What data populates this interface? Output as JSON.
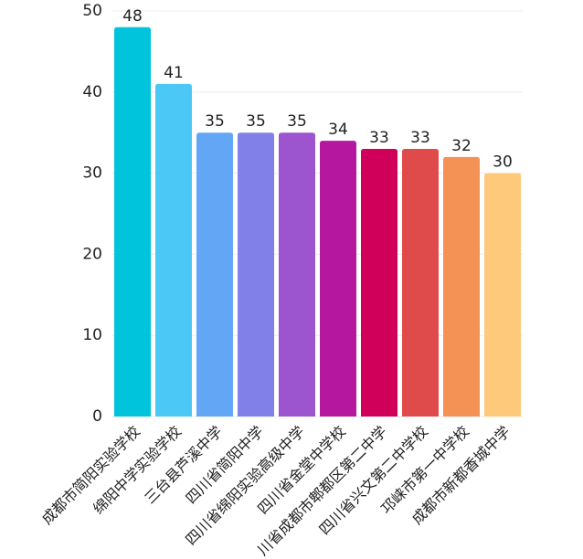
{
  "chart_data": {
    "type": "bar",
    "categories": [
      "成都市简阳实验学校",
      "绵阳中学实验学校",
      "三台县芦溪中学",
      "四川省简阳中学",
      "四川省绵阳实验高级中学",
      "四川省金堂中学校",
      "川省成都市郫都区第二中学",
      "四川省兴文第二中学校",
      "邛崃市第一中学校",
      "成都市新都香城中学"
    ],
    "values": [
      48,
      41,
      35,
      35,
      35,
      34,
      33,
      33,
      32,
      30
    ],
    "colors": [
      "#00c4dc",
      "#4cc8f7",
      "#62a6f5",
      "#8180e9",
      "#9c55cf",
      "#b5179e",
      "#d0005a",
      "#df4b4b",
      "#f49154",
      "#fec97b"
    ],
    "ylim": [
      0,
      50
    ],
    "yticks": [
      0,
      10,
      20,
      30,
      40,
      50
    ],
    "grid": true
  }
}
